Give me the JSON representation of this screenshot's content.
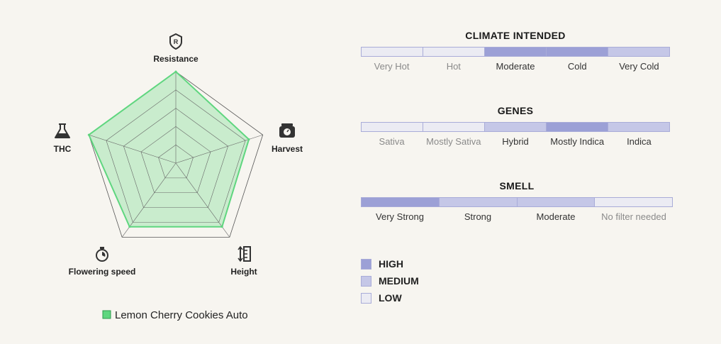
{
  "chart_data": {
    "type": "radar",
    "axes": [
      "Resistance",
      "Harvest",
      "Height",
      "Flowering speed",
      "THC"
    ],
    "levels": 5,
    "range": [
      0,
      5
    ],
    "series": [
      {
        "name": "Lemon Cherry Cookies Auto",
        "values": [
          5,
          4.2,
          4.3,
          4.3,
          5
        ],
        "color": "#5fd67f"
      }
    ],
    "legend": "bottom"
  },
  "axis_icons": [
    "shield-icon",
    "scale-icon",
    "ruler-icon",
    "stopwatch-icon",
    "flask-icon"
  ],
  "climate": {
    "title": "CLIMATE INTENDED",
    "items": [
      {
        "label": "Very Hot",
        "level": "low"
      },
      {
        "label": "Hot",
        "level": "low"
      },
      {
        "label": "Moderate",
        "level": "high"
      },
      {
        "label": "Cold",
        "level": "high"
      },
      {
        "label": "Very Cold",
        "level": "medium"
      }
    ]
  },
  "genes": {
    "title": "GENES",
    "items": [
      {
        "label": "Sativa",
        "level": "low"
      },
      {
        "label": "Mostly Sativa",
        "level": "low"
      },
      {
        "label": "Hybrid",
        "level": "medium"
      },
      {
        "label": "Mostly Indica",
        "level": "high"
      },
      {
        "label": "Indica",
        "level": "medium"
      }
    ]
  },
  "smell": {
    "title": "SMELL",
    "items": [
      {
        "label": "Very Strong",
        "level": "high"
      },
      {
        "label": "Strong",
        "level": "medium"
      },
      {
        "label": "Moderate",
        "level": "medium"
      },
      {
        "label": "No filter needed",
        "level": "low"
      }
    ]
  },
  "key": {
    "high": "HIGH",
    "medium": "MEDIUM",
    "low": "LOW"
  },
  "colors": {
    "high": "#9ca0d6",
    "medium": "#c5c7e7",
    "low": "#ebebf3",
    "series": "#5fd67f",
    "background": "#f7f5f0"
  }
}
